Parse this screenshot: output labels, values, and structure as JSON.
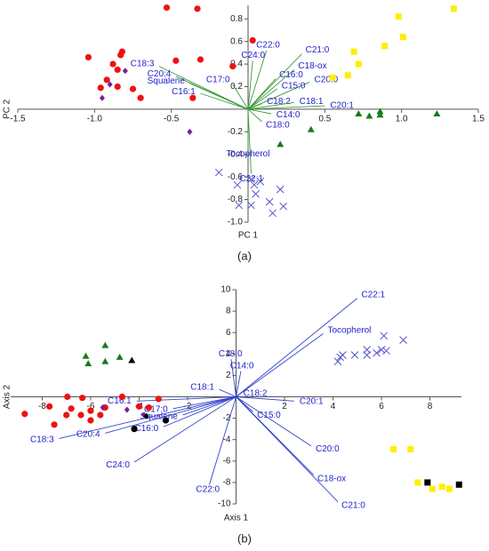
{
  "chart_data": [
    {
      "type": "biplot",
      "caption": "(a)",
      "x_label": "PC 1",
      "y_label": "PC 2",
      "xlim": [
        -1.5,
        1.5
      ],
      "ylim": [
        -1.0,
        0.92
      ],
      "xticks": [
        -1.5,
        {
          "value": -1,
          "label": "-1.0"
        },
        -0.5,
        0.5,
        {
          "value": 1,
          "label": "1.0"
        },
        1.5
      ],
      "yticks": [
        0.8,
        0.6,
        0.4,
        0.2,
        -0.2,
        -0.4,
        -0.6,
        -0.8,
        {
          "value": -1,
          "label": "-1.0"
        }
      ],
      "series": [
        {
          "marker": "circle",
          "color": "#ee1111",
          "x": [
            -0.53,
            -0.33,
            0.03,
            -1.04,
            -0.82,
            -0.83,
            -0.88,
            -0.85,
            -0.47,
            -0.31,
            -0.1,
            -0.92,
            -0.96,
            -0.85,
            -0.75,
            -0.7,
            -0.36
          ],
          "values": [
            0.9,
            0.89,
            0.61,
            0.46,
            0.51,
            0.48,
            0.4,
            0.35,
            0.43,
            0.44,
            0.38,
            0.26,
            0.19,
            0.2,
            0.18,
            0.1,
            0.1
          ]
        },
        {
          "marker": "diamond",
          "color": "#7a1a9a",
          "x": [
            -0.8,
            -0.9,
            -0.95,
            -0.38
          ],
          "values": [
            0.34,
            0.22,
            0.1,
            -0.2
          ]
        },
        {
          "marker": "square",
          "color": "#ffee00",
          "x": [
            0.98,
            1.34,
            1.01,
            0.89,
            0.69,
            0.72,
            0.65,
            0.55
          ],
          "values": [
            0.82,
            0.89,
            0.64,
            0.56,
            0.51,
            0.4,
            0.3,
            0.28
          ]
        },
        {
          "marker": "triangle",
          "color": "#1a7a1a",
          "x": [
            0.72,
            0.79,
            0.86,
            0.86,
            1.23,
            0.41,
            0.21
          ],
          "values": [
            -0.04,
            -0.06,
            -0.02,
            -0.05,
            -0.04,
            -0.18,
            -0.31
          ]
        },
        {
          "marker": "cross",
          "color": "#5555cc",
          "x": [
            -0.19,
            0.02,
            0.08,
            0.04,
            -0.07,
            0.21,
            0.05,
            0.14,
            0.02,
            -0.06,
            0.23,
            0.16
          ],
          "values": [
            -0.56,
            -0.62,
            -0.64,
            -0.67,
            -0.67,
            -0.71,
            -0.75,
            -0.82,
            -0.85,
            -0.85,
            -0.86,
            -0.92
          ]
        }
      ],
      "loadings": {
        "color": "#3c9a3c",
        "label_color": "#2222cc",
        "labels": [
          "C22:0",
          "C24:0",
          "C21:0",
          "C18-ox",
          "C16:0",
          "C20:0",
          "C15:0",
          "C18:3",
          "C20:4",
          "Squalene",
          "C16:1",
          "C17:0",
          "C18:2",
          "C18:1",
          "C20:1",
          "C14:0",
          "C18:0",
          "Tocopherol",
          "C22:1"
        ],
        "x": [
          0.12,
          0.03,
          0.35,
          0.3,
          0.18,
          0.4,
          0.19,
          -0.58,
          -0.47,
          -0.38,
          -0.31,
          -0.1,
          0.09,
          0.3,
          0.5,
          0.15,
          0.09,
          0.0,
          0.02
        ],
        "values": [
          0.52,
          0.43,
          0.49,
          0.35,
          0.27,
          0.24,
          0.18,
          0.38,
          0.29,
          0.23,
          0.14,
          0.22,
          0.05,
          0.06,
          0.03,
          -0.04,
          -0.11,
          -0.35,
          -0.57
        ]
      }
    },
    {
      "type": "biplot",
      "caption": "(b)",
      "x_label": "Axis 1",
      "y_label": "Axis 2",
      "xlim": [
        -9.3,
        9.3
      ],
      "ylim": [
        -10,
        10
      ],
      "xticks": [
        -8,
        -6,
        -4,
        -2,
        2,
        4,
        6,
        8
      ],
      "yticks": [
        10,
        8,
        6,
        4,
        2,
        -2,
        -4,
        -6,
        -8,
        -10
      ],
      "series": [
        {
          "marker": "circle",
          "color": "#ee1111",
          "x": [
            -8.72,
            -7.7,
            -6.96,
            -6.34,
            -6.8,
            -6.4,
            -6.0,
            -6.0,
            -5.6,
            -5.4,
            -7.5,
            -7.0,
            -4.0,
            -3.2,
            -3.6,
            -4.7
          ],
          "values": [
            -1.6,
            -0.9,
            0,
            -0.1,
            -1.1,
            -1.7,
            -1.3,
            -2.2,
            -1.7,
            -1.0,
            -2.6,
            -1.7,
            -0.9,
            -0.2,
            -1.0,
            0
          ]
        },
        {
          "marker": "diamond",
          "color": "#7a1a9a",
          "x": [
            -5.5,
            -4.5,
            -3.8
          ],
          "values": [
            -1.0,
            -1.2,
            -1.7
          ]
        },
        {
          "marker": "triangle",
          "color": "#1a7a1a",
          "x": [
            -6.2,
            -5.4,
            -6.1,
            -5.4,
            -4.8
          ],
          "values": [
            3.8,
            4.8,
            3.1,
            3.3,
            3.7
          ]
        },
        {
          "marker": "square",
          "color": "#ffee00",
          "x": [
            6.5,
            7.2,
            7.5,
            8.1,
            8.5,
            8.8
          ],
          "values": [
            -4.9,
            -4.9,
            -8.0,
            -8.6,
            -8.4,
            -8.6
          ]
        },
        {
          "marker": "cross",
          "color": "#5555cc",
          "x": [
            4.2,
            4.3,
            4.4,
            4.9,
            5.4,
            5.4,
            5.8,
            6.0,
            6.1,
            6.9,
            6.2
          ],
          "values": [
            3.3,
            3.7,
            3.9,
            3.9,
            4.4,
            3.9,
            4.1,
            4.4,
            5.7,
            5.3,
            4.3
          ]
        },
        {
          "marker": "circle",
          "color": "#000000",
          "x": [
            -4.2,
            -2.9
          ],
          "values": [
            -3.0,
            -2.2
          ]
        },
        {
          "marker": "diamond",
          "color": "#000000",
          "x": [
            -3.7
          ],
          "values": [
            -1.8
          ]
        },
        {
          "marker": "triangle",
          "color": "#000000",
          "x": [
            -4.3
          ],
          "values": [
            3.4
          ]
        },
        {
          "marker": "square",
          "color": "#000000",
          "x": [
            7.9,
            9.2
          ],
          "values": [
            -8.0,
            -8.2
          ]
        }
      ],
      "loadings": {
        "color": "#3344cc",
        "label_color": "#2222cc",
        "labels": [
          "C22:1",
          "Tocopherol",
          "C18:0",
          "C14:0",
          "C18:1",
          "C18:2",
          "C20:1",
          "C15:0",
          "C20:0",
          "C18-ox",
          "C21:0",
          "C22:0",
          "C24:0",
          "C18:3",
          "C20:4",
          "C16:0",
          "Squalene",
          "C17:0",
          "C16:1"
        ],
        "x": [
          5.0,
          3.6,
          -0.2,
          0.2,
          -0.7,
          0.1,
          2.4,
          0.7,
          3.1,
          3.2,
          4.2,
          -1.1,
          -4.2,
          -7.3,
          -5.4,
          -3.0,
          -2.2,
          -2.6,
          -4.1
        ],
        "values": [
          9.2,
          5.9,
          3.5,
          2.4,
          0.7,
          0.1,
          -0.4,
          -1.4,
          -4.6,
          -7.3,
          -9.8,
          -8.2,
          -6.1,
          -3.9,
          -3.4,
          -2.8,
          -1.7,
          -1.1,
          -0.4
        ]
      }
    }
  ]
}
